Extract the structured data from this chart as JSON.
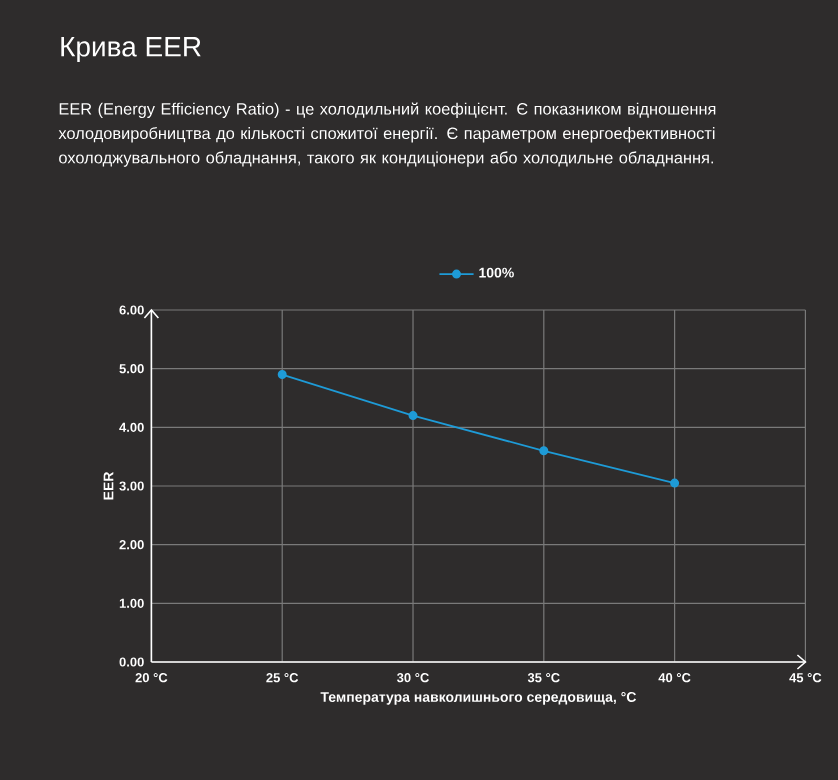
{
  "chart_data": {
    "type": "line",
    "title": "Крива EER",
    "subtitle": "EER (Energy Efficiency Ratio) - це холодильний коефіцієнт. Є показником відношення холодовиробництва до кількості спожитої енергії. Є параметром енергоефективності охолоджувального обладнання, такого як кондиціонери або холодильне обладнання.",
    "xlabel": "Температура навколишнього середовища, °C",
    "ylabel": "EER",
    "x": [
      25,
      30,
      35,
      40
    ],
    "series": [
      {
        "name": "100%",
        "color": "#1e9bd7",
        "values": [
          4.9,
          4.2,
          3.6,
          3.05
        ]
      }
    ],
    "xlim": [
      20,
      45
    ],
    "xticks": [
      {
        "value": 20,
        "label": "20 °C"
      },
      {
        "value": 25,
        "label": "25 °C"
      },
      {
        "value": 30,
        "label": "30 °C"
      },
      {
        "value": 35,
        "label": "35 °C"
      },
      {
        "value": 40,
        "label": "40 °C"
      },
      {
        "value": 45,
        "label": "45 °C"
      }
    ],
    "ylim": [
      0,
      6
    ],
    "yticks": [
      {
        "value": 0,
        "label": "0.00"
      },
      {
        "value": 1,
        "label": "1.00"
      },
      {
        "value": 2,
        "label": "2.00"
      },
      {
        "value": 3,
        "label": "3.00"
      },
      {
        "value": 4,
        "label": "4.00"
      },
      {
        "value": 5,
        "label": "5.00"
      },
      {
        "value": 6,
        "label": "6.00"
      }
    ],
    "grid": true,
    "legend": "top",
    "marker": "circle",
    "line_style": "solid"
  }
}
